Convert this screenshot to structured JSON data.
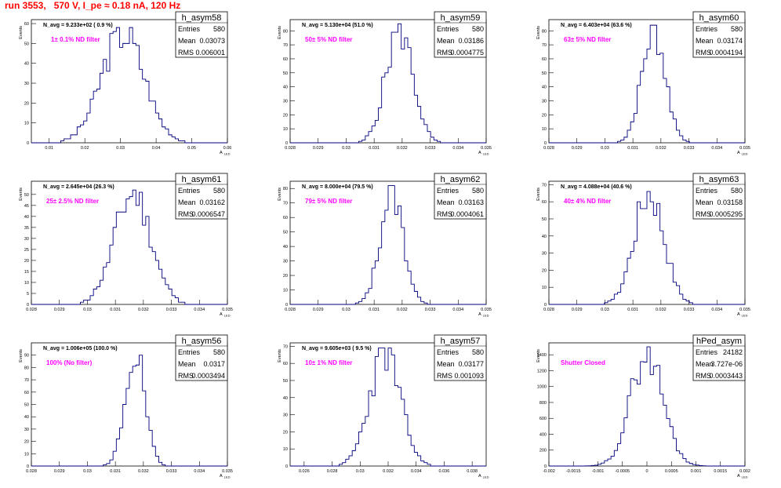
{
  "title": "run 3553,   570 V, I_pe ≈ 0.18 nA, 120 Hz",
  "colors": {
    "hist_line": "#00007f",
    "filter_text": "#ff00ff",
    "title_text": "#ff0000"
  },
  "common": {
    "ylabel": "Events",
    "xlabel": "A",
    "xlabel_sub": "LED",
    "stats_labels": [
      "Entries",
      "Mean",
      "RMS"
    ]
  },
  "chart_data": [
    {
      "type": "bar",
      "name": "h_asym58",
      "navg": "N_avg = 9.233e+02 ( 0.9 %)",
      "filter": "1± 0.1% ND filter",
      "entries": "580",
      "mean": "0.03073",
      "rms": "0.006001",
      "xlim": [
        0.005,
        0.06
      ],
      "xticks": [
        0.01,
        0.02,
        0.03,
        0.04,
        0.05,
        0.06
      ],
      "xtick_labels": [
        "0.01",
        "0.02",
        "0.03",
        "0.04",
        "0.05",
        "0.06"
      ],
      "ylim": [
        0,
        62
      ],
      "yticks": [
        0,
        10,
        20,
        30,
        40,
        50,
        60
      ],
      "peak": 58,
      "mu": 0.0307,
      "sigma": 0.006,
      "seed": 3
    },
    {
      "type": "bar",
      "name": "h_asym59",
      "navg": "N_avg = 5.130e+04 (51.0 %)",
      "filter": "50± 5% ND filter",
      "entries": "580",
      "mean": "0.03186",
      "rms": "0.0004775",
      "xlim": [
        0.028,
        0.035
      ],
      "xticks": [
        0.028,
        0.029,
        0.03,
        0.031,
        0.032,
        0.033,
        0.034,
        0.035
      ],
      "xtick_labels": [
        "0.028",
        "0.029",
        "0.03",
        "0.031",
        "0.032",
        "0.033",
        "0.034",
        "0.035"
      ],
      "ylim": [
        0,
        88
      ],
      "yticks": [
        0,
        10,
        20,
        30,
        40,
        50,
        60,
        70,
        80
      ],
      "peak": 85,
      "mu": 0.0319,
      "sigma": 0.00048,
      "seed": 5
    },
    {
      "type": "bar",
      "name": "h_asym60",
      "navg": "N_avg = 6.403e+04 (63.6 %)",
      "filter": "63± 5% ND filter",
      "entries": "580",
      "mean": "0.03174",
      "rms": "0.0004194",
      "xlim": [
        0.028,
        0.035
      ],
      "xticks": [
        0.028,
        0.029,
        0.03,
        0.031,
        0.032,
        0.033,
        0.034,
        0.035
      ],
      "xtick_labels": [
        "0.028",
        "0.029",
        "0.03",
        "0.031",
        "0.032",
        "0.033",
        "0.034",
        "0.035"
      ],
      "ylim": [
        0,
        88
      ],
      "yticks": [
        0,
        10,
        20,
        30,
        40,
        50,
        60,
        70,
        80
      ],
      "peak": 84,
      "mu": 0.03174,
      "sigma": 0.00042,
      "seed": 7
    },
    {
      "type": "bar",
      "name": "h_asym61",
      "navg": "N_avg = 2.645e+04 (26.3 %)",
      "filter": "25± 2.5% ND filter",
      "entries": "580",
      "mean": "0.03162",
      "rms": "0.0006547",
      "xlim": [
        0.028,
        0.035
      ],
      "xticks": [
        0.028,
        0.029,
        0.03,
        0.031,
        0.032,
        0.033,
        0.034,
        0.035
      ],
      "xtick_labels": [
        "0.028",
        "0.029",
        "0.03",
        "0.031",
        "0.032",
        "0.033",
        "0.034",
        "0.035"
      ],
      "ylim": [
        0,
        56
      ],
      "yticks": [
        0,
        5,
        10,
        15,
        20,
        25,
        30,
        35,
        40,
        45,
        50
      ],
      "peak": 53,
      "mu": 0.03162,
      "sigma": 0.00065,
      "seed": 11
    },
    {
      "type": "bar",
      "name": "h_asym62",
      "navg": "N_avg = 8.000e+04 (79.5 %)",
      "filter": "79± 5% ND filter",
      "entries": "580",
      "mean": "0.03163",
      "rms": "0.0004061",
      "xlim": [
        0.028,
        0.035
      ],
      "xticks": [
        0.028,
        0.029,
        0.03,
        0.031,
        0.032,
        0.033,
        0.034,
        0.035
      ],
      "xtick_labels": [
        "0.028",
        "0.029",
        "0.03",
        "0.031",
        "0.032",
        "0.033",
        "0.034",
        "0.035"
      ],
      "ylim": [
        0,
        85
      ],
      "yticks": [
        0,
        10,
        20,
        30,
        40,
        50,
        60,
        70,
        80
      ],
      "peak": 82,
      "mu": 0.03163,
      "sigma": 0.00041,
      "seed": 13
    },
    {
      "type": "bar",
      "name": "h_asym63",
      "navg": "N_avg = 4.088e+04 (40.6 %)",
      "filter": "40± 4% ND filter",
      "entries": "580",
      "mean": "0.03158",
      "rms": "0.0005295",
      "xlim": [
        0.028,
        0.035
      ],
      "xticks": [
        0.028,
        0.029,
        0.03,
        0.031,
        0.032,
        0.033,
        0.034,
        0.035
      ],
      "xtick_labels": [
        "0.028",
        "0.029",
        "0.03",
        "0.031",
        "0.032",
        "0.033",
        "0.034",
        "0.035"
      ],
      "ylim": [
        0,
        72
      ],
      "yticks": [
        0,
        10,
        20,
        30,
        40,
        50,
        60,
        70
      ],
      "peak": 69,
      "mu": 0.03158,
      "sigma": 0.00053,
      "seed": 17
    },
    {
      "type": "bar",
      "name": "h_asym56",
      "navg": "N_avg = 1.006e+05 (100.0 %)",
      "filter": "100% (No filter)",
      "entries": "580",
      "mean": "0.0317",
      "rms": "0.0003494",
      "xlim": [
        0.028,
        0.035
      ],
      "xticks": [
        0.028,
        0.029,
        0.03,
        0.031,
        0.032,
        0.033,
        0.034,
        0.035
      ],
      "xtick_labels": [
        "0.028",
        "0.029",
        "0.03",
        "0.031",
        "0.032",
        "0.033",
        "0.034",
        "0.035"
      ],
      "ylim": [
        0,
        100
      ],
      "yticks": [
        0,
        10,
        20,
        30,
        40,
        50,
        60,
        70,
        80,
        90
      ],
      "peak": 96,
      "mu": 0.0317,
      "sigma": 0.00035,
      "seed": 19
    },
    {
      "type": "bar",
      "name": "h_asym57",
      "navg": "N_avg = 9.605e+03 ( 9.5 %)",
      "filter": "10± 1% ND filter",
      "entries": "580",
      "mean": "0.03177",
      "rms": "0.001093",
      "xlim": [
        0.025,
        0.039
      ],
      "xticks": [
        0.026,
        0.028,
        0.03,
        0.032,
        0.034,
        0.036,
        0.038
      ],
      "xtick_labels": [
        "0.026",
        "0.028",
        "0.03",
        "0.032",
        "0.034",
        "0.036",
        "0.038"
      ],
      "ylim": [
        0,
        72
      ],
      "yticks": [
        0,
        10,
        20,
        30,
        40,
        50,
        60,
        70
      ],
      "peak": 69,
      "mu": 0.03177,
      "sigma": 0.0011,
      "seed": 23
    },
    {
      "type": "bar",
      "name": "hPed_asym",
      "navg": "",
      "filter": "Shutter Closed",
      "entries": "24182",
      "mean": "3.727e-06",
      "rms": "0.0003443",
      "xlim": [
        -0.002,
        0.002
      ],
      "xticks": [
        -0.002,
        -0.0015,
        -0.001,
        -0.0005,
        0,
        0.0005,
        0.001,
        0.0015,
        0.002
      ],
      "xtick_labels": [
        "-0.002",
        "-0.0015",
        "-0.001",
        "-0.0005",
        "0",
        "0.0005",
        "0.001",
        "0.0015",
        "0.002"
      ],
      "ylim": [
        0,
        1550
      ],
      "yticks": [
        0,
        200,
        400,
        600,
        800,
        1000,
        1200,
        1400
      ],
      "peak": 1500,
      "mu": 0.0,
      "sigma": 0.00033,
      "seed": 29
    }
  ]
}
